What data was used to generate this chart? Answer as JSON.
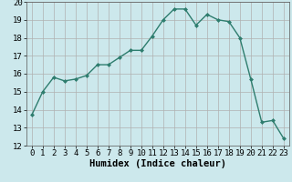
{
  "x": [
    0,
    1,
    2,
    3,
    4,
    5,
    6,
    7,
    8,
    9,
    10,
    11,
    12,
    13,
    14,
    15,
    16,
    17,
    18,
    19,
    20,
    21,
    22,
    23
  ],
  "y": [
    13.7,
    15.0,
    15.8,
    15.6,
    15.7,
    15.9,
    16.5,
    16.5,
    16.9,
    17.3,
    17.3,
    18.1,
    19.0,
    19.6,
    19.6,
    18.7,
    19.3,
    19.0,
    18.9,
    18.0,
    15.7,
    13.3,
    13.4,
    12.4
  ],
  "line_color": "#2e7d6e",
  "marker": "D",
  "marker_size": 2.0,
  "line_width": 1.0,
  "xlabel": "Humidex (Indice chaleur)",
  "xlim": [
    -0.5,
    23.5
  ],
  "ylim": [
    12,
    20
  ],
  "yticks": [
    12,
    13,
    14,
    15,
    16,
    17,
    18,
    19,
    20
  ],
  "xticks": [
    0,
    1,
    2,
    3,
    4,
    5,
    6,
    7,
    8,
    9,
    10,
    11,
    12,
    13,
    14,
    15,
    16,
    17,
    18,
    19,
    20,
    21,
    22,
    23
  ],
  "bg_color": "#cce8ec",
  "grid_color": "#b0b0b0",
  "xlabel_fontsize": 7.5,
  "tick_fontsize": 6.5
}
